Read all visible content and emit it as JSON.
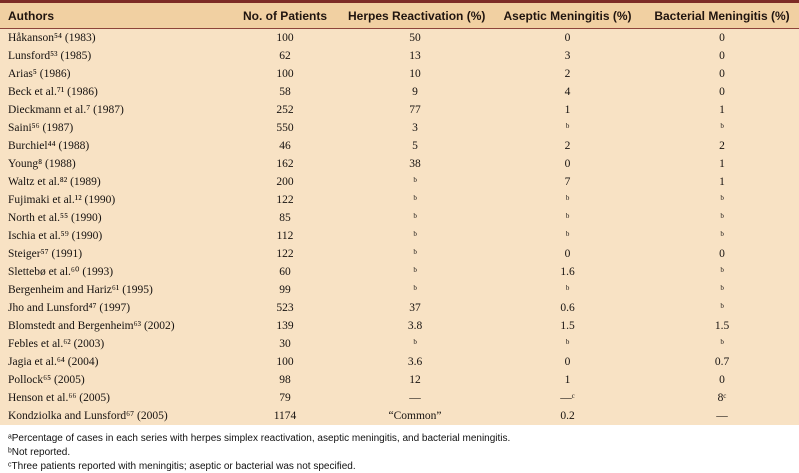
{
  "colors": {
    "table_background": "#f8e2c4",
    "header_background": "#f1d0a2",
    "header_rule": "#7d2b25",
    "text": "#161210",
    "page_background": "#ffffff"
  },
  "table": {
    "headers": [
      "Authors",
      "No. of Patients",
      "Herpes Reactivation (%)",
      "Aseptic Meningitis (%)",
      "Bacterial Meningitis (%)"
    ],
    "rows": [
      {
        "author": "Håkanson⁵⁴ (1983)",
        "patients": "100",
        "herpes": "50",
        "aseptic": "0",
        "bacterial": "0"
      },
      {
        "author": "Lunsford⁵³ (1985)",
        "patients": "62",
        "herpes": "13",
        "aseptic": "3",
        "bacterial": "0"
      },
      {
        "author": "Arias⁵ (1986)",
        "patients": "100",
        "herpes": "10",
        "aseptic": "2",
        "bacterial": "0"
      },
      {
        "author": "Beck et al.⁷¹ (1986)",
        "patients": "58",
        "herpes": "9",
        "aseptic": "4",
        "bacterial": "0"
      },
      {
        "author": "Dieckmann et al.⁷ (1987)",
        "patients": "252",
        "herpes": "77",
        "aseptic": "1",
        "bacterial": "1"
      },
      {
        "author": "Saini⁵⁶ (1987)",
        "patients": "550",
        "herpes": "3",
        "aseptic": "ᵇ",
        "bacterial": "ᵇ"
      },
      {
        "author": "Burchiel⁴⁴ (1988)",
        "patients": "46",
        "herpes": "5",
        "aseptic": "2",
        "bacterial": "2"
      },
      {
        "author": "Young⁸ (1988)",
        "patients": "162",
        "herpes": "38",
        "aseptic": "0",
        "bacterial": "1"
      },
      {
        "author": "Waltz et al.⁸² (1989)",
        "patients": "200",
        "herpes": "ᵇ",
        "aseptic": "7",
        "bacterial": "1"
      },
      {
        "author": "Fujimaki et al.¹² (1990)",
        "patients": "122",
        "herpes": "ᵇ",
        "aseptic": "ᵇ",
        "bacterial": "ᵇ"
      },
      {
        "author": "North et al.⁵⁵ (1990)",
        "patients": "85",
        "herpes": "ᵇ",
        "aseptic": "ᵇ",
        "bacterial": "ᵇ"
      },
      {
        "author": "Ischia et al.⁵⁹ (1990)",
        "patients": "112",
        "herpes": "ᵇ",
        "aseptic": "ᵇ",
        "bacterial": "ᵇ"
      },
      {
        "author": "Steiger⁵⁷ (1991)",
        "patients": "122",
        "herpes": "ᵇ",
        "aseptic": "0",
        "bacterial": "0"
      },
      {
        "author": "Slettebø et al.⁶⁰ (1993)",
        "patients": "60",
        "herpes": "ᵇ",
        "aseptic": "1.6",
        "bacterial": "ᵇ"
      },
      {
        "author": "Bergenheim and Hariz⁶¹ (1995)",
        "patients": "99",
        "herpes": "ᵇ",
        "aseptic": "ᵇ",
        "bacterial": "ᵇ"
      },
      {
        "author": "Jho and Lunsford⁴⁷ (1997)",
        "patients": "523",
        "herpes": "37",
        "aseptic": "0.6",
        "bacterial": "ᵇ"
      },
      {
        "author": "Blomstedt and Bergenheim⁶³ (2002)",
        "patients": "139",
        "herpes": "3.8",
        "aseptic": "1.5",
        "bacterial": "1.5"
      },
      {
        "author": "Febles et al.⁶² (2003)",
        "patients": "30",
        "herpes": "ᵇ",
        "aseptic": "ᵇ",
        "bacterial": "ᵇ"
      },
      {
        "author": "Jagia et al.⁶⁴ (2004)",
        "patients": "100",
        "herpes": "3.6",
        "aseptic": "0",
        "bacterial": "0.7"
      },
      {
        "author": "Pollock⁶⁵ (2005)",
        "patients": "98",
        "herpes": "12",
        "aseptic": "1",
        "bacterial": "0"
      },
      {
        "author": "Henson et al.⁶⁶ (2005)",
        "patients": "79",
        "herpes": "—",
        "aseptic": "—ᶜ",
        "bacterial": "8ᶜ"
      },
      {
        "author": "Kondziolka and Lunsford⁶⁷ (2005)",
        "patients": "1174",
        "herpes": "“Common”",
        "aseptic": "0.2",
        "bacterial": "—"
      }
    ]
  },
  "footnotes": [
    "ᵃPercentage of cases in each series with herpes simplex reactivation, aseptic meningitis, and bacterial meningitis.",
    "ᵇNot reported.",
    "ᶜThree patients reported with meningitis; aseptic or bacterial was not specified."
  ]
}
